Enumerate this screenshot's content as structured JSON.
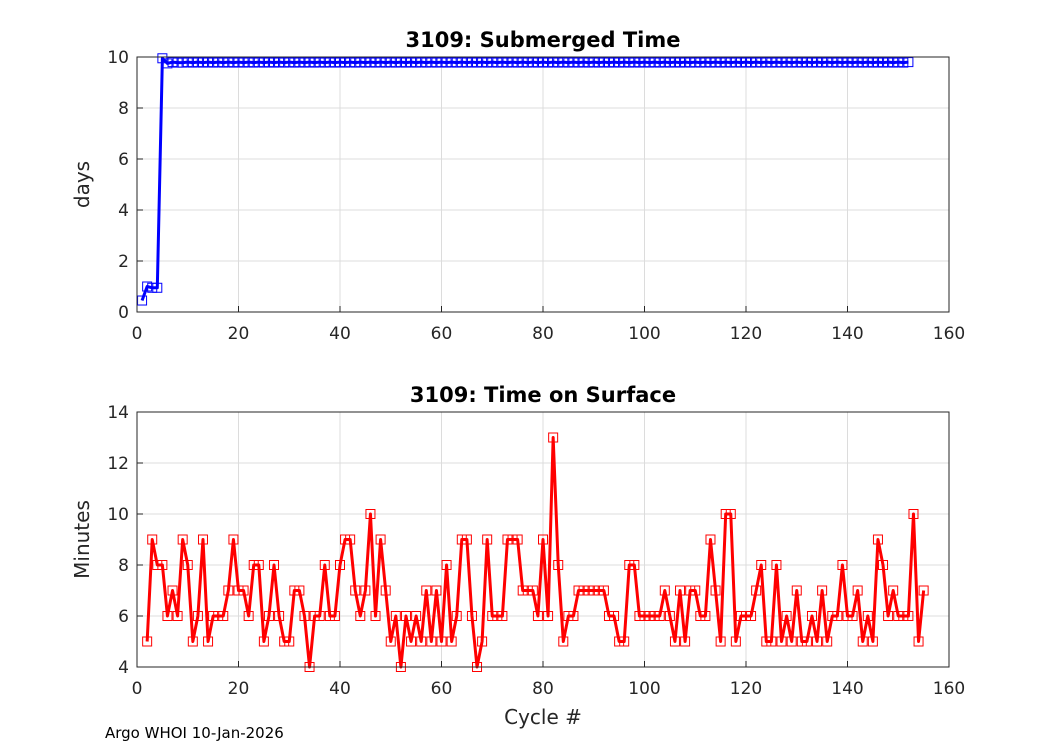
{
  "footer": "Argo WHOI 10-Jan-2026",
  "chart_data": [
    {
      "type": "line",
      "title": "3109: Submerged Time",
      "xlabel": "",
      "ylabel": "days",
      "xlim": [
        0,
        160
      ],
      "ylim": [
        0,
        10
      ],
      "xticks": [
        0,
        20,
        40,
        60,
        80,
        100,
        120,
        140,
        160
      ],
      "yticks": [
        0,
        2,
        4,
        6,
        8,
        10
      ],
      "grid": true,
      "color": "#0000ff",
      "marker": "square",
      "series": [
        {
          "name": "Submerged Time",
          "x_start": 1,
          "values": [
            0.45,
            1.0,
            0.95,
            0.95,
            9.95,
            9.75,
            9.8,
            9.78,
            9.78,
            9.8,
            9.78,
            9.8,
            9.78,
            9.8,
            9.78,
            9.8,
            9.78,
            9.8,
            9.78,
            9.8,
            9.78,
            9.8,
            9.78,
            9.8,
            9.78,
            9.8,
            9.78,
            9.8,
            9.78,
            9.8,
            9.78,
            9.8,
            9.78,
            9.8,
            9.78,
            9.8,
            9.78,
            9.8,
            9.78,
            9.8,
            9.78,
            9.8,
            9.78,
            9.8,
            9.78,
            9.8,
            9.78,
            9.8,
            9.78,
            9.8,
            9.78,
            9.8,
            9.78,
            9.8,
            9.78,
            9.8,
            9.78,
            9.8,
            9.78,
            9.8,
            9.78,
            9.8,
            9.78,
            9.8,
            9.78,
            9.8,
            9.78,
            9.8,
            9.78,
            9.8,
            9.78,
            9.8,
            9.78,
            9.8,
            9.78,
            9.8,
            9.78,
            9.8,
            9.78,
            9.8,
            9.78,
            9.8,
            9.78,
            9.8,
            9.78,
            9.8,
            9.78,
            9.8,
            9.78,
            9.8,
            9.78,
            9.8,
            9.78,
            9.8,
            9.78,
            9.8,
            9.78,
            9.8,
            9.78,
            9.8,
            9.78,
            9.8,
            9.78,
            9.8,
            9.78,
            9.8,
            9.78,
            9.8,
            9.78,
            9.8,
            9.78,
            9.8,
            9.78,
            9.8,
            9.78,
            9.8,
            9.78,
            9.8,
            9.78,
            9.8,
            9.78,
            9.8,
            9.78,
            9.8,
            9.78,
            9.8,
            9.78,
            9.8,
            9.78,
            9.8,
            9.78,
            9.8,
            9.78,
            9.8,
            9.78,
            9.8,
            9.78,
            9.8,
            9.78,
            9.8,
            9.78,
            9.8,
            9.78,
            9.8,
            9.78,
            9.8,
            9.78,
            9.8,
            9.78,
            9.8,
            9.78,
            9.8
          ]
        }
      ]
    },
    {
      "type": "line",
      "title": "3109: Time on Surface",
      "xlabel": "Cycle #",
      "ylabel": "Minutes",
      "xlim": [
        0,
        160
      ],
      "ylim": [
        4,
        14
      ],
      "xticks": [
        0,
        20,
        40,
        60,
        80,
        100,
        120,
        140,
        160
      ],
      "yticks": [
        4,
        6,
        8,
        10,
        12,
        14
      ],
      "grid": true,
      "color": "#ff0000",
      "marker": "square",
      "series": [
        {
          "name": "Time on Surface",
          "x_start": 2,
          "values": [
            5,
            9,
            8,
            8,
            6,
            7,
            6,
            9,
            8,
            5,
            6,
            9,
            5,
            6,
            6,
            6,
            7,
            9,
            7,
            7,
            6,
            8,
            8,
            5,
            6,
            8,
            6,
            5,
            5,
            7,
            7,
            6,
            4,
            6,
            6,
            8,
            6,
            6,
            8,
            9,
            9,
            7,
            6,
            7,
            10,
            6,
            9,
            7,
            5,
            6,
            4,
            6,
            5,
            6,
            5,
            7,
            5,
            7,
            5,
            8,
            5,
            6,
            9,
            9,
            6,
            4,
            5,
            9,
            6,
            6,
            6,
            9,
            9,
            9,
            7,
            7,
            7,
            6,
            9,
            6,
            13,
            8,
            5,
            6,
            6,
            7,
            7,
            7,
            7,
            7,
            7,
            6,
            6,
            5,
            5,
            8,
            8,
            6,
            6,
            6,
            6,
            6,
            7,
            6,
            5,
            7,
            5,
            7,
            7,
            6,
            6,
            9,
            7,
            5,
            10,
            10,
            5,
            6,
            6,
            6,
            7,
            8,
            5,
            5,
            8,
            5,
            6,
            5,
            7,
            5,
            5,
            6,
            5,
            7,
            5,
            6,
            6,
            8,
            6,
            6,
            7,
            5,
            6,
            5,
            9,
            8,
            6,
            7,
            6,
            6,
            6,
            10,
            5,
            7
          ]
        }
      ]
    }
  ]
}
